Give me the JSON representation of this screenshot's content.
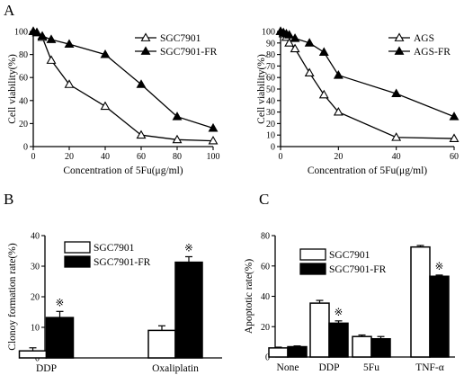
{
  "chart_data": [
    {
      "panel": "A",
      "type": "line",
      "ylabel": "Cell viability(%)",
      "xlabel": "Concentration of 5Fu(μg/ml)",
      "xlim": [
        0,
        100
      ],
      "ylim": [
        0,
        100
      ],
      "xticks": [
        "0",
        "20",
        "40",
        "60",
        "80",
        "100"
      ],
      "yticks": [
        "0",
        "20",
        "40",
        "60",
        "80",
        "100"
      ],
      "legend_position": "top-right",
      "series": [
        {
          "name": "SGC7901",
          "marker": "open-triangle",
          "x": [
            0,
            2,
            5,
            10,
            20,
            40,
            60,
            80,
            100
          ],
          "y": [
            100,
            99,
            95,
            75,
            54,
            35,
            10,
            6,
            5
          ]
        },
        {
          "name": "SGC7901-FR",
          "marker": "filled-triangle",
          "x": [
            0,
            2,
            5,
            10,
            20,
            40,
            60,
            80,
            100
          ],
          "y": [
            100,
            99,
            96,
            93,
            89,
            80,
            54,
            26,
            16
          ]
        }
      ]
    },
    {
      "panel": "",
      "type": "line",
      "ylabel": "Cell viability(%)",
      "xlabel": "Concentration of 5Fu(μg/ml)",
      "xlim": [
        0,
        60
      ],
      "ylim": [
        0,
        100
      ],
      "xticks": [
        "0",
        "20",
        "40",
        "60"
      ],
      "yticks": [
        "0",
        "10",
        "20",
        "30",
        "40",
        "50",
        "60",
        "70",
        "80",
        "90",
        "100"
      ],
      "legend_position": "top-right",
      "series": [
        {
          "name": "AGS",
          "marker": "open-triangle",
          "x": [
            0,
            1,
            2,
            3,
            5,
            10,
            15,
            20,
            40,
            60
          ],
          "y": [
            100,
            98,
            95,
            90,
            85,
            64,
            45,
            30,
            8,
            7
          ]
        },
        {
          "name": "AGS-FR",
          "marker": "filled-triangle",
          "x": [
            0,
            1,
            2,
            3,
            5,
            10,
            15,
            20,
            40,
            60
          ],
          "y": [
            100,
            99,
            98,
            97,
            94,
            90,
            82,
            62,
            46,
            26
          ]
        }
      ]
    },
    {
      "panel": "B",
      "type": "bar",
      "ylabel": "Clonoy formation rate(%)",
      "categories": [
        "DDP",
        "Oxaliplatin"
      ],
      "ylim": [
        0,
        40
      ],
      "yticks": [
        "0",
        "10",
        "20",
        "30",
        "40"
      ],
      "legend_position": "top-left",
      "significance_mark": "※",
      "series": [
        {
          "name": "SGC7901",
          "fill": "#ffffff",
          "values": [
            2.3,
            9.0
          ],
          "errors": [
            1.0,
            1.5
          ]
        },
        {
          "name": "SGC7901-FR",
          "fill": "#000000",
          "values": [
            13.2,
            31.3
          ],
          "errors": [
            2.0,
            1.8
          ]
        }
      ],
      "significant": [
        true,
        true
      ]
    },
    {
      "panel": "C",
      "type": "bar",
      "ylabel": "Apoptotic rate(%)",
      "categories": [
        "None",
        "DDP",
        "5Fu",
        "TNF-α"
      ],
      "ylim": [
        0,
        80
      ],
      "yticks": [
        "0",
        "20",
        "40",
        "60",
        "80"
      ],
      "legend_position": "top-left",
      "significance_mark": "※",
      "series": [
        {
          "name": "SGC7901",
          "fill": "#ffffff",
          "values": [
            6.0,
            35.5,
            13.5,
            72.5
          ],
          "errors": [
            0.5,
            1.8,
            1.0,
            1.0
          ]
        },
        {
          "name": "SGC7901-FR",
          "fill": "#000000",
          "values": [
            6.8,
            22.3,
            12.0,
            53.2
          ],
          "errors": [
            0.5,
            1.5,
            1.5,
            0.8
          ]
        }
      ],
      "significant": [
        false,
        true,
        false,
        true
      ]
    }
  ]
}
